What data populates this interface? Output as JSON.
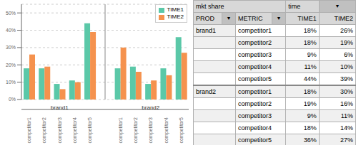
{
  "chart_data": [
    {
      "type": "bar",
      "categories": [
        "competitor1",
        "competitor2",
        "competitor3",
        "competitor4",
        "competitor5",
        null,
        "competitor1",
        "competitor2",
        "competitor3",
        "competitor4",
        "competitor5"
      ],
      "series": [
        {
          "name": "TIME1",
          "color": "#5BC8A8",
          "values": [
            0.18,
            0.18,
            0.09,
            0.11,
            0.44,
            null,
            0.18,
            0.19,
            0.09,
            0.18,
            0.36
          ]
        },
        {
          "name": "TIME2",
          "color": "#F5924E",
          "values": [
            0.26,
            0.19,
            0.06,
            0.1,
            0.39,
            null,
            0.3,
            0.16,
            0.11,
            0.14,
            0.27
          ]
        }
      ],
      "ylim": [
        0,
        0.55
      ],
      "yticks": [
        {
          "value": 0,
          "label": "0%"
        },
        {
          "value": 0.1,
          "label": "10%"
        },
        {
          "value": 0.2,
          "label": "20%"
        },
        {
          "value": 0.3,
          "label": "30%"
        },
        {
          "value": 0.4,
          "label": "40%"
        },
        {
          "value": 0.5,
          "label": "50%"
        }
      ],
      "grid": true,
      "legend": "upper right",
      "annotations": [
        "brand1",
        "brand2"
      ]
    },
    {
      "type": "table",
      "header": [
        [
          "mkt share",
          "time",
          "▼"
        ],
        [
          "PROD",
          "▼",
          "METRIC",
          "▼",
          "TIME1",
          "TIME2"
        ]
      ],
      "rows": [
        [
          "brand1",
          "competitor1",
          "18%",
          "26%"
        ],
        [
          null,
          "competitor2",
          "18%",
          "19%"
        ],
        [
          null,
          "competitor3",
          "9%",
          "6%"
        ],
        [
          null,
          "competitor4",
          "11%",
          "10%"
        ],
        [
          null,
          "competitor5",
          "44%",
          "39%"
        ],
        [
          "brand2",
          "competitor1",
          "18%",
          "30%"
        ],
        [
          null,
          "competitor2",
          "19%",
          "16%"
        ],
        [
          null,
          "competitor3",
          "9%",
          "11%"
        ],
        [
          null,
          "competitor4",
          "18%",
          "14%"
        ],
        [
          null,
          "competitor5",
          "36%",
          "27%"
        ]
      ]
    }
  ]
}
